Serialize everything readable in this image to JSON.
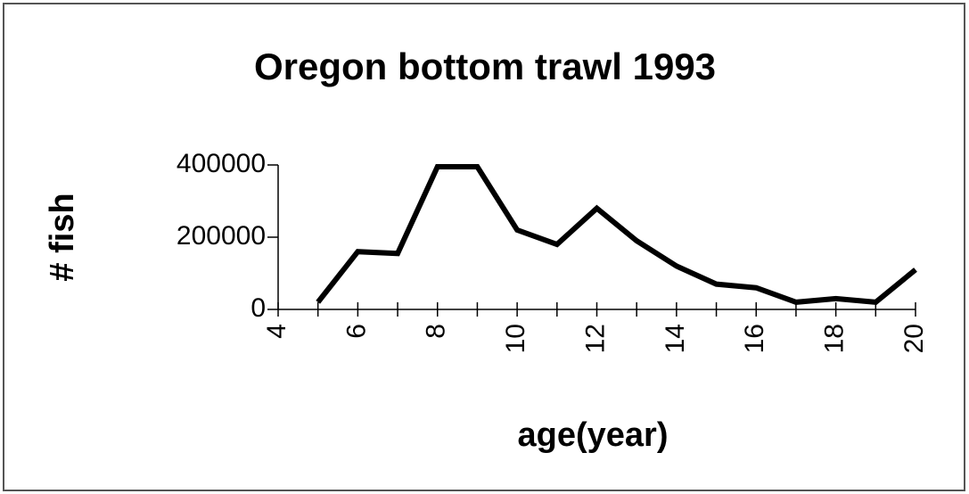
{
  "chart_data": {
    "type": "line",
    "title": "Oregon bottom trawl 1993",
    "x_label": "age(year)",
    "y_label": "# fish",
    "x": [
      5,
      6,
      7,
      8,
      9,
      10,
      11,
      12,
      13,
      14,
      15,
      16,
      17,
      18,
      19,
      20
    ],
    "series": [
      {
        "name": "# fish",
        "color": "#000000",
        "values": [
          20000,
          160000,
          155000,
          395000,
          395000,
          220000,
          180000,
          280000,
          190000,
          120000,
          70000,
          60000,
          20000,
          30000,
          20000,
          110000
        ]
      }
    ],
    "xlim": [
      4,
      20
    ],
    "xticks": [
      4,
      6,
      8,
      10,
      12,
      14,
      16,
      18,
      20
    ],
    "ylim": [
      0,
      400000
    ],
    "yticks": [
      0,
      200000,
      400000
    ],
    "grid": false
  }
}
